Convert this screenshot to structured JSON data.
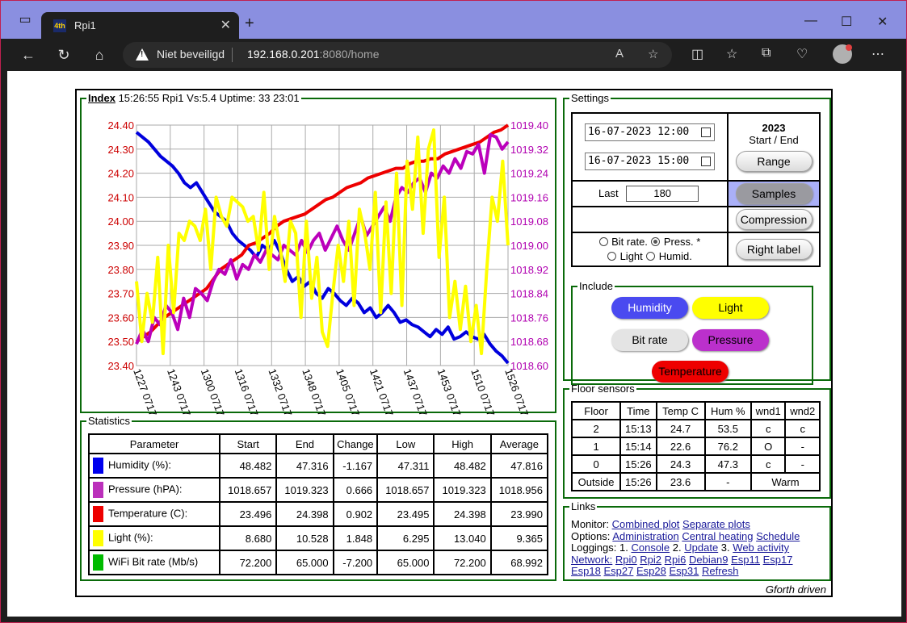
{
  "browser": {
    "tab_title": "Rpi1",
    "tab_favicon": "4th",
    "address_warning": "Niet beveiligd",
    "address_host": "192.168.0.201",
    "address_path": ":8080/home",
    "icons": [
      "back-icon",
      "refresh-icon",
      "home-icon",
      "read-aloud-icon",
      "favorite-icon",
      "split-screen-icon",
      "favorites-icon",
      "collections-icon",
      "browser-essentials-icon",
      "profile-icon",
      "more-icon"
    ]
  },
  "header": {
    "index_link": "Index",
    "status": " 15:26:55 Rpi1 Vs:5.4 Uptime: 33 23:01"
  },
  "chart_data": {
    "type": "line",
    "y_left": {
      "min": 23.4,
      "max": 24.4,
      "ticks": [
        "24.40",
        "24.30",
        "24.20",
        "24.10",
        "24.00",
        "23.90",
        "23.80",
        "23.70",
        "23.60",
        "23.50",
        "23.40"
      ],
      "color": "#cc0000"
    },
    "y_right": {
      "min": 1018.6,
      "max": 1019.4,
      "ticks": [
        "1019.40",
        "1019.32",
        "1019.24",
        "1019.16",
        "1019.08",
        "1019.00",
        "1018.92",
        "1018.84",
        "1018.76",
        "1018.68",
        "1018.60"
      ],
      "color": "#b000b0"
    },
    "x_ticks": [
      "1227 0717",
      "1243 0717",
      "1300 0717",
      "1316 0717",
      "1332 0717",
      "1348 0717",
      "1405 0717",
      "1421 0717",
      "1437 0717",
      "1453 0717",
      "1510 0717",
      "1526 0717"
    ],
    "grid": true,
    "series": [
      {
        "color": "#0000dd",
        "axis": "norm",
        "values": [
          0.97,
          0.95,
          0.93,
          0.9,
          0.87,
          0.85,
          0.83,
          0.8,
          0.76,
          0.74,
          0.76,
          0.72,
          0.68,
          0.64,
          0.62,
          0.6,
          0.55,
          0.52,
          0.5,
          0.48,
          0.45,
          0.5,
          0.48,
          0.52,
          0.47,
          0.4,
          0.35,
          0.37,
          0.33,
          0.35,
          0.3,
          0.28,
          0.32,
          0.3,
          0.27,
          0.25,
          0.28,
          0.26,
          0.22,
          0.24,
          0.2,
          0.22,
          0.25,
          0.22,
          0.18,
          0.19,
          0.17,
          0.16,
          0.14,
          0.12,
          0.15,
          0.13,
          0.16,
          0.11,
          0.12,
          0.14,
          0.12,
          0.11,
          0.13,
          0.09,
          0.06,
          0.04,
          0.01
        ]
      },
      {
        "color": "#ee0000",
        "axis": "left",
        "values": [
          23.5,
          23.52,
          23.54,
          23.57,
          23.6,
          23.62,
          23.64,
          23.66,
          23.68,
          23.7,
          23.72,
          23.76,
          23.8,
          23.82,
          23.84,
          23.86,
          23.9,
          23.91,
          23.93,
          23.95,
          23.98,
          24.0,
          24.01,
          24.02,
          24.03,
          24.05,
          24.07,
          24.09,
          24.1,
          24.12,
          24.14,
          24.15,
          24.16,
          24.18,
          24.19,
          24.2,
          24.21,
          24.22,
          24.22,
          24.24,
          24.25,
          24.25,
          24.26,
          24.26,
          24.28,
          24.29,
          24.3,
          24.31,
          24.32,
          24.33,
          24.35,
          24.37,
          24.38,
          24.4
        ]
      },
      {
        "color": "#bb00bb",
        "axis": "norm",
        "values": [
          0.09,
          0.15,
          0.1,
          0.2,
          0.17,
          0.25,
          0.22,
          0.15,
          0.28,
          0.2,
          0.32,
          0.3,
          0.27,
          0.35,
          0.4,
          0.38,
          0.44,
          0.36,
          0.42,
          0.4,
          0.46,
          0.43,
          0.48,
          0.46,
          0.44,
          0.5,
          0.48,
          0.46,
          0.52,
          0.47,
          0.52,
          0.55,
          0.48,
          0.53,
          0.58,
          0.52,
          0.48,
          0.55,
          0.62,
          0.54,
          0.58,
          0.62,
          0.66,
          0.6,
          0.7,
          0.74,
          0.72,
          0.76,
          0.78,
          0.72,
          0.8,
          0.78,
          0.83,
          0.8,
          0.86,
          0.82,
          0.89,
          0.88,
          0.92,
          0.8,
          0.96,
          0.95,
          0.9,
          0.93
        ]
      },
      {
        "color": "#ffff00",
        "axis": "norm",
        "values": [
          0.35,
          0.1,
          0.3,
          0.18,
          0.45,
          0.05,
          0.5,
          0.22,
          0.55,
          0.52,
          0.6,
          0.58,
          0.52,
          0.65,
          0.4,
          0.7,
          0.62,
          0.58,
          0.7,
          0.68,
          0.66,
          0.6,
          0.62,
          0.48,
          0.72,
          0.4,
          0.62,
          0.5,
          0.35,
          0.6,
          0.55,
          0.2,
          0.6,
          0.28,
          0.45,
          0.14,
          0.08,
          0.3,
          0.5,
          0.35,
          0.6,
          0.25,
          0.65,
          0.55,
          0.4,
          0.72,
          0.22,
          0.68,
          0.3,
          0.8,
          0.25,
          0.85,
          0.65,
          0.95,
          0.55,
          0.9,
          0.98,
          0.45,
          0.7,
          0.2,
          0.35,
          0.15,
          0.33,
          0.1,
          0.25,
          0.05,
          0.4,
          0.7,
          0.6,
          0.85,
          0.5
        ]
      }
    ]
  },
  "statistics": {
    "legend": "Statistics",
    "headers": [
      "Parameter",
      "Start",
      "End",
      "Change",
      "Low",
      "High",
      "Average"
    ],
    "rows": [
      {
        "color": "#0000ee",
        "label": "Humidity (%):",
        "cells": [
          "48.482",
          "47.316",
          "-1.167",
          "47.311",
          "48.482",
          "47.816"
        ]
      },
      {
        "color": "#bb30bb",
        "label": "Pressure (hPA):",
        "cells": [
          "1018.657",
          "1019.323",
          "0.666",
          "1018.657",
          "1019.323",
          "1018.956"
        ]
      },
      {
        "color": "#ee0000",
        "label": "Temperature (C):",
        "cells": [
          "23.496",
          "24.398",
          "0.902",
          "23.495",
          "24.398",
          "23.990"
        ]
      },
      {
        "color": "#ffff00",
        "label": "Light (%):",
        "cells": [
          "8.680",
          "10.528",
          "1.848",
          "6.295",
          "13.040",
          "9.365"
        ]
      },
      {
        "color": "#00bb00",
        "label": "WiFi Bit rate (Mb/s)",
        "cells": [
          "72.200",
          "65.000",
          "-7.200",
          "65.000",
          "72.200",
          "68.992"
        ]
      }
    ]
  },
  "settings": {
    "legend": "Settings",
    "start_datetime": "16-07-2023 12:00",
    "end_datetime": "16-07-2023 15:00",
    "year": "2023",
    "start_end_label": "Start / End",
    "range_button": "Range",
    "last_label": "Last",
    "last_value": "180",
    "samples_button": "Samples",
    "compression_button": "Compression",
    "opt_bitrate": "Bit rate.",
    "opt_press": "Press. *",
    "opt_light": "Light",
    "opt_humid": "Humid.",
    "right_label_button": "Right label",
    "include_legend": "Include",
    "include": {
      "humidity": "Humidity",
      "light": "Light",
      "bitrate": "Bit rate",
      "pressure": "Pressure",
      "temperature": "Temperature"
    },
    "colors": {
      "humidity": "#4a4af0",
      "light": "#ffff00",
      "bitrate": "#e4e4e4",
      "pressure": "#bb30cc",
      "temperature": "#ee0000"
    }
  },
  "floor": {
    "legend": "Floor sensors",
    "headers": [
      "Floor",
      "Time",
      "Temp C",
      "Hum %",
      "wnd1",
      "wnd2"
    ],
    "rows": [
      [
        "2",
        "15:13",
        "24.7",
        "53.5",
        "c",
        "c"
      ],
      [
        "1",
        "15:14",
        "22.6",
        "76.2",
        "O",
        "-"
      ],
      [
        "0",
        "15:26",
        "24.3",
        "47.3",
        "c",
        "-"
      ]
    ],
    "outside": {
      "label": "Outside",
      "time": "15:26",
      "temp": "23.6",
      "hum": "-",
      "status": "Warm"
    }
  },
  "links": {
    "legend": "Links",
    "monitor_label": "Monitor:",
    "combined_plot": "Combined plot",
    "separate_plots": "Separate plots",
    "options_label": "Options:",
    "administration": "Administration",
    "central_heating": "Central heating",
    "schedule": "Schedule",
    "loggings_label": "Loggings: 1.",
    "console": "Console",
    "two": " 2.",
    "update": "Update",
    "three": " 3.",
    "web_activity": "Web activity",
    "network": "Network:",
    "nodes1": [
      "Rpi0",
      "Rpi2",
      "Rpi6",
      "Debian9",
      "Esp11",
      "Esp17"
    ],
    "nodes2": [
      "Esp18",
      "Esp27",
      "Esp28",
      "Esp31",
      "Refresh"
    ]
  },
  "footer": "Gforth driven"
}
